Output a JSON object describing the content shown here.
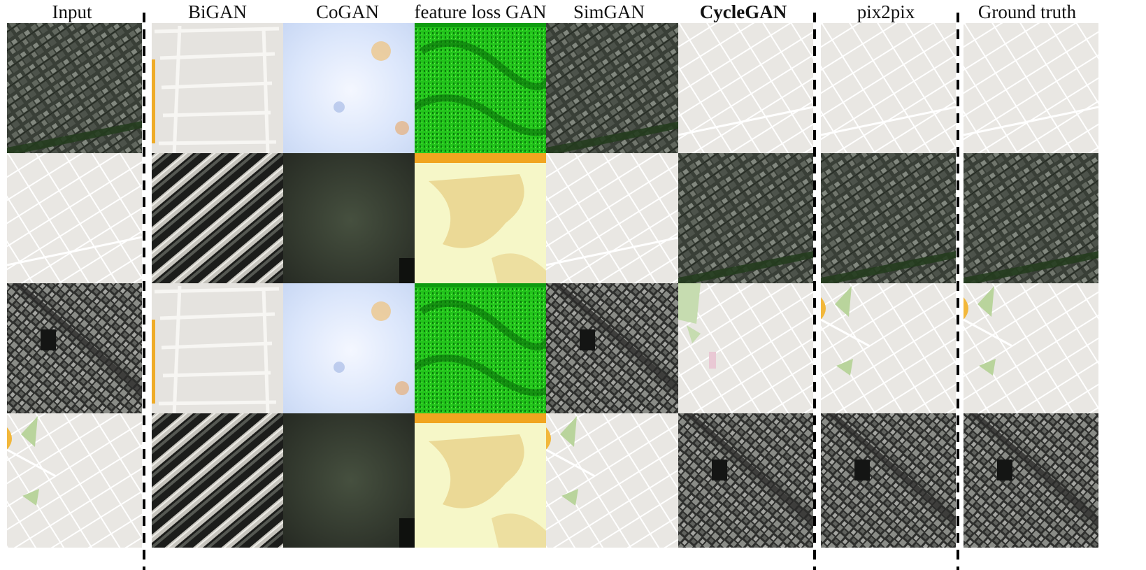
{
  "figure": {
    "columns": [
      {
        "key": "input",
        "label": "Input",
        "bold": false
      },
      {
        "key": "bigan",
        "label": "BiGAN",
        "bold": false
      },
      {
        "key": "cogan",
        "label": "CoGAN",
        "bold": false
      },
      {
        "key": "feature_loss_gan",
        "label": "feature loss GAN",
        "bold": false
      },
      {
        "key": "simgan",
        "label": "SimGAN",
        "bold": false
      },
      {
        "key": "cyclegan",
        "label": "CycleGAN",
        "bold": true
      },
      {
        "key": "pix2pix",
        "label": "pix2pix",
        "bold": false
      },
      {
        "key": "ground_truth",
        "label": "Ground truth",
        "bold": false
      }
    ],
    "rows": [
      [
        "aerial-a",
        "bigan-map",
        "cogan-cloud",
        "featgan-green",
        "aerial-a",
        "map-grid",
        "map-grid",
        "map-grid"
      ],
      [
        "map-grid",
        "bigan-aerial",
        "cogan-dark",
        "featgan-yellow",
        "map-grid",
        "aerial-a",
        "aerial-a",
        "aerial-a"
      ],
      [
        "aerial-b",
        "bigan-map",
        "cogan-cloud",
        "featgan-green",
        "aerial-b",
        "map-park",
        "map-park-orange",
        "map-park-orange"
      ],
      [
        "map-park-orange",
        "bigan-aerial",
        "cogan-dark",
        "featgan-yellow",
        "map-park-orange",
        "aerial-b",
        "aerial-b",
        "aerial-b"
      ]
    ]
  }
}
